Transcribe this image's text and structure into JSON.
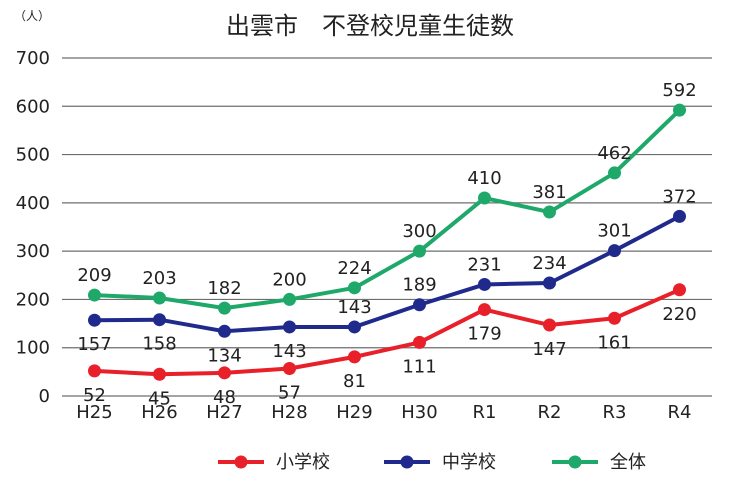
{
  "chart_data": {
    "type": "line",
    "title": "出雲市　不登校児童生徒数",
    "ylabel": "（人）",
    "xlabel": "",
    "ylim": [
      0,
      700
    ],
    "yticks": [
      0,
      100,
      200,
      300,
      400,
      500,
      600,
      700
    ],
    "grid": true,
    "legend_position": "bottom",
    "categories": [
      "H25",
      "H26",
      "H27",
      "H28",
      "H29",
      "H30",
      "R1",
      "R2",
      "R3",
      "R4"
    ],
    "series": [
      {
        "name": "小学校",
        "color": "#e8202a",
        "values": [
          52,
          45,
          48,
          57,
          81,
          111,
          179,
          147,
          161,
          220
        ]
      },
      {
        "name": "中学校",
        "color": "#1f2a8c",
        "values": [
          157,
          158,
          134,
          143,
          143,
          189,
          231,
          234,
          301,
          372
        ]
      },
      {
        "name": "全体",
        "color": "#1ea86a",
        "values": [
          209,
          203,
          182,
          200,
          224,
          300,
          410,
          381,
          462,
          592
        ]
      }
    ]
  }
}
